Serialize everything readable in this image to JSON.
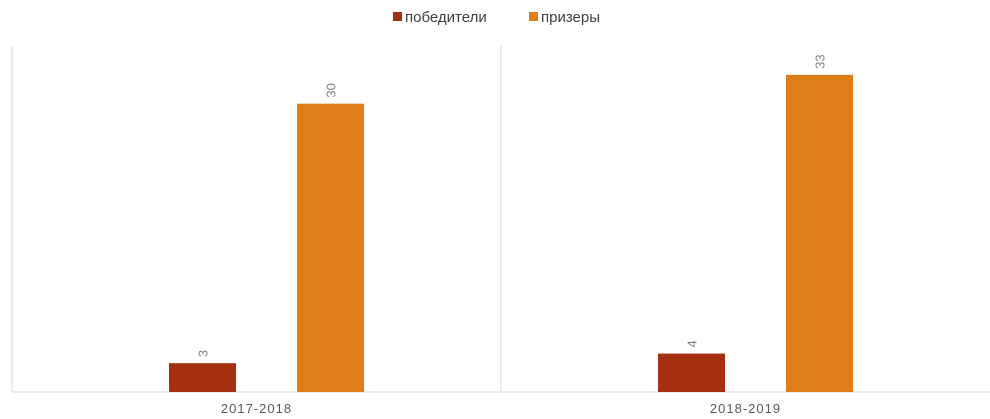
{
  "chart_data": {
    "type": "bar",
    "categories": [
      "2017-2018",
      "2018-2019"
    ],
    "series": [
      {
        "name": "победители",
        "values": [
          3,
          4
        ],
        "color": "#A5300F"
      },
      {
        "name": "призеры",
        "values": [
          30,
          33
        ],
        "color": "#DE7E18"
      }
    ],
    "ylim": [
      0,
      36
    ],
    "legend": "top-center",
    "grid": false,
    "data_labels": true
  }
}
